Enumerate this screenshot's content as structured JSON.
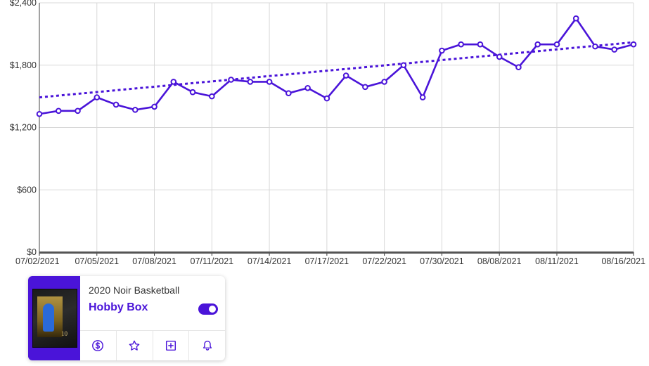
{
  "chart_data": {
    "type": "line",
    "title": "",
    "xlabel": "",
    "ylabel": "",
    "ylim": [
      0,
      2400
    ],
    "yticks": [
      "$0",
      "$600",
      "$1,200",
      "$1,800",
      "$2,400"
    ],
    "ytick_values": [
      0,
      600,
      1200,
      1800,
      2400
    ],
    "xticks": [
      "07/02/2021",
      "07/05/2021",
      "07/08/2021",
      "07/11/2021",
      "07/14/2021",
      "07/17/2021",
      "07/22/2021",
      "07/30/2021",
      "08/08/2021",
      "08/11/2021",
      "08/16/2021"
    ],
    "xtick_index": [
      0,
      3,
      6,
      9,
      12,
      15,
      18,
      21,
      24,
      27,
      31
    ],
    "grid": true,
    "series": [
      {
        "values": [
          1330,
          1360,
          1360,
          1490,
          1420,
          1370,
          1400,
          1640,
          1540,
          1500,
          1660,
          1640,
          1640,
          1530,
          1580,
          1480,
          1700,
          1590,
          1640,
          1800,
          1490,
          1940,
          2000,
          2000,
          1880,
          1780,
          2000,
          2000,
          2250,
          1980,
          1950,
          2000
        ],
        "color": "#4a14d9",
        "style": "solid",
        "markers": true
      },
      {
        "values_linear": [
          1490,
          2020
        ],
        "color": "#4a14d9",
        "style": "dotted",
        "role": "trend"
      }
    ]
  },
  "card": {
    "subtitle": "2020 Noir Basketball",
    "title": "Hobby Box",
    "box_number": "10",
    "toggle_on": true,
    "accent": "#4a14d9",
    "actions": [
      {
        "icon": "dollar-circle-icon"
      },
      {
        "icon": "star-icon"
      },
      {
        "icon": "plus-square-icon"
      },
      {
        "icon": "bell-icon"
      }
    ]
  }
}
